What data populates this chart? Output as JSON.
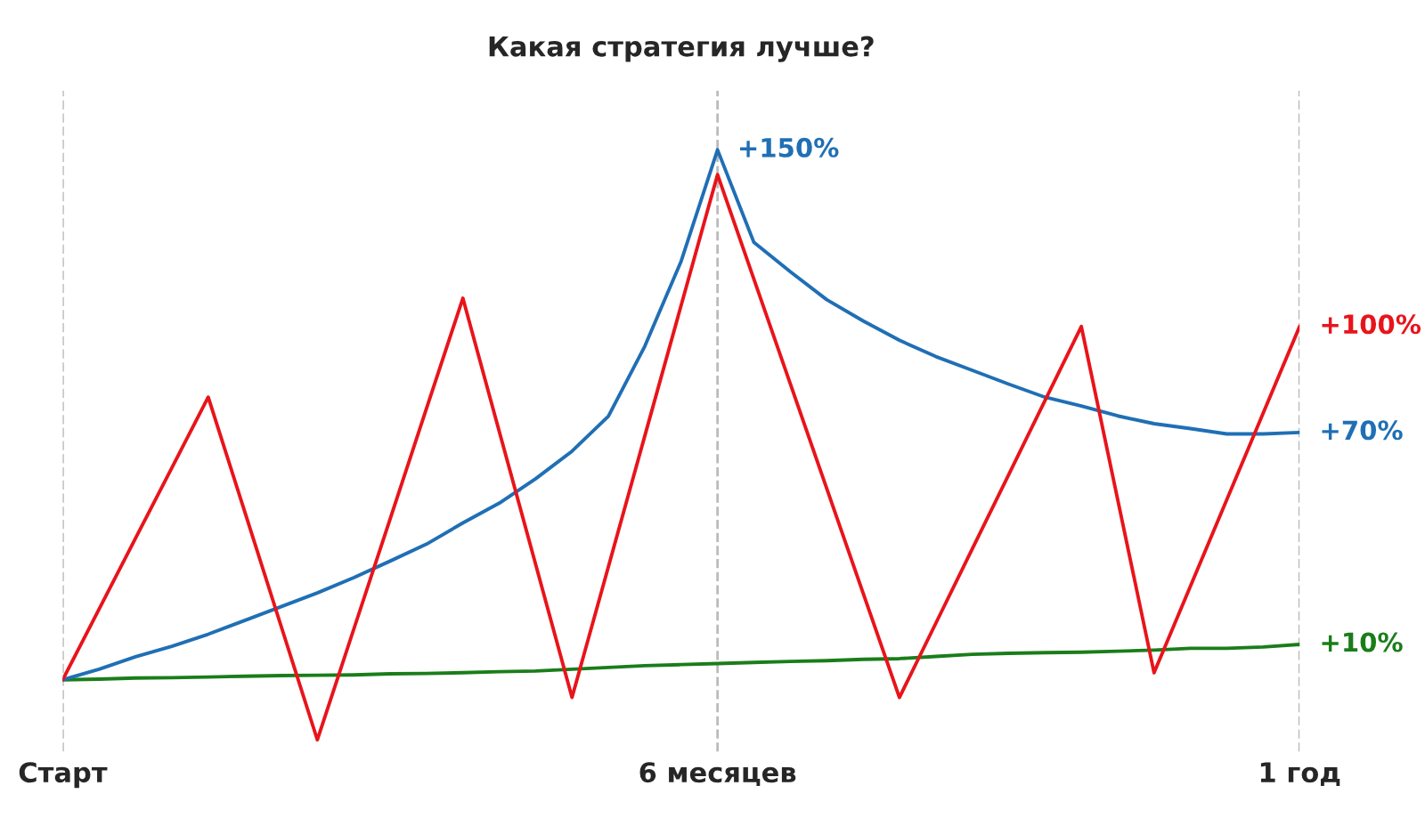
{
  "chart_data": {
    "type": "line",
    "title": "Какая стратегия лучше?",
    "grid": "x",
    "legend": false,
    "marker": "none",
    "line_style": "solid",
    "categories": [
      "Старт",
      null,
      null,
      null,
      null,
      null,
      null,
      null,
      null,
      null,
      null,
      null,
      null,
      null,
      null,
      null,
      null,
      null,
      "6 месяцев",
      null,
      null,
      null,
      null,
      null,
      null,
      null,
      null,
      null,
      null,
      null,
      null,
      null,
      null,
      null,
      "1 год"
    ],
    "series": [
      {
        "color": "#1a7d1a",
        "values": [
          0,
          0.2,
          0.5,
          0.6,
          0.8,
          1.0,
          1.2,
          1.3,
          1.4,
          1.7,
          1.8,
          2.0,
          2.3,
          2.5,
          3.0,
          3.5,
          4.0,
          4.3,
          4.6,
          4.9,
          5.2,
          5.4,
          5.8,
          6.0,
          6.6,
          7.2,
          7.5,
          7.7,
          7.8,
          8.1,
          8.4,
          8.9,
          8.9,
          9.3,
          10
        ],
        "value_labels": [
          null,
          null,
          null,
          null,
          null,
          null,
          null,
          null,
          null,
          null,
          null,
          null,
          null,
          null,
          null,
          null,
          null,
          null,
          null,
          null,
          null,
          null,
          null,
          null,
          null,
          null,
          null,
          null,
          null,
          null,
          null,
          null,
          null,
          null,
          "+10%"
        ]
      },
      {
        "color": "#1f6fb5",
        "values": [
          0,
          3.0,
          6.5,
          9.5,
          12.9,
          16.8,
          20.7,
          24.6,
          28.9,
          33.6,
          38.4,
          44.4,
          50.0,
          56.9,
          64.7,
          74.6,
          94.4,
          118.5,
          150,
          123.8,
          115.5,
          107.6,
          101.6,
          96.1,
          91.5,
          87.6,
          83.7,
          80,
          77.5,
          74.7,
          72.5,
          71.1,
          69.6,
          69.6,
          70
        ],
        "value_labels": [
          null,
          null,
          null,
          null,
          null,
          null,
          null,
          null,
          null,
          null,
          null,
          null,
          null,
          null,
          null,
          null,
          null,
          null,
          "+150%",
          null,
          null,
          null,
          null,
          null,
          null,
          null,
          null,
          null,
          null,
          null,
          null,
          null,
          null,
          null,
          "+70%"
        ]
      },
      {
        "color": "#e8141b",
        "values": [
          0,
          20,
          40,
          60,
          80,
          47.7,
          15.3,
          -17,
          14.3,
          45.5,
          76.8,
          108,
          70.3,
          32.7,
          -5,
          32,
          69,
          106,
          143,
          113.4,
          83.8,
          54.2,
          24.6,
          -5,
          16,
          37,
          58,
          79,
          100,
          51,
          2,
          26.5,
          51,
          75.5,
          100
        ],
        "value_labels": [
          null,
          null,
          null,
          null,
          null,
          null,
          null,
          null,
          null,
          null,
          null,
          null,
          null,
          null,
          null,
          null,
          null,
          null,
          null,
          null,
          null,
          null,
          null,
          null,
          null,
          null,
          null,
          null,
          null,
          null,
          null,
          null,
          null,
          null,
          "+100%"
        ]
      }
    ]
  }
}
